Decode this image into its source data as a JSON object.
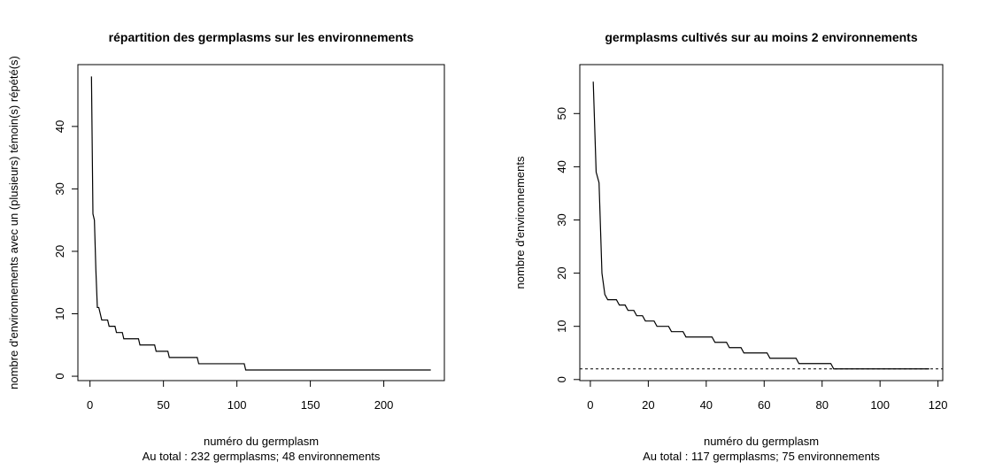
{
  "chart_data": [
    {
      "type": "line",
      "title": "répartition des germplasms sur les environnements",
      "xlabel": "numéro du germplasm",
      "subtitle": "Au total : 232 germplasms; 48 environnements",
      "ylabel": "nombre d'environnements avec un (plusieurs) témoin(s) répété(s)",
      "series": [
        {
          "color": "#000000",
          "x": [
            1,
            2,
            3,
            4,
            5,
            6,
            7,
            8,
            12,
            13,
            17,
            18,
            22,
            23,
            33,
            34,
            44,
            45,
            53,
            54,
            73,
            74,
            105,
            106,
            232
          ],
          "values": [
            48,
            26,
            25,
            17,
            11,
            11,
            10,
            9,
            9,
            8,
            8,
            7,
            7,
            6,
            6,
            5,
            5,
            4,
            4,
            3,
            3,
            2,
            2,
            1,
            1
          ]
        }
      ],
      "xlim": [
        -8.24,
        241.24
      ],
      "xticks": [
        0,
        50,
        100,
        150,
        200
      ],
      "ylim": [
        -0.7,
        49.9
      ],
      "yticks": [
        0,
        10,
        20,
        30,
        40
      ]
    },
    {
      "type": "line",
      "title": "germplasms cultivés sur au moins 2 environnements",
      "xlabel": "numéro du germplasm",
      "subtitle": "Au total : 117 germplasms; 75 environnements",
      "ylabel": "nombre d'environnements",
      "series": [
        {
          "color": "#000000",
          "x": [
            1,
            2,
            3,
            4,
            5,
            6,
            9,
            10,
            12,
            13,
            15,
            16,
            18,
            19,
            22,
            23,
            27,
            28,
            32,
            33,
            42,
            43,
            47,
            48,
            52,
            53,
            61,
            62,
            71,
            72,
            83,
            84,
            117
          ],
          "values": [
            56,
            39,
            37,
            20,
            16,
            15,
            15,
            14,
            14,
            13,
            13,
            12,
            12,
            11,
            11,
            10,
            10,
            9,
            9,
            8,
            8,
            7,
            7,
            6,
            6,
            5,
            5,
            4,
            4,
            3,
            3,
            2,
            2
          ]
        }
      ],
      "reference_line": 2,
      "xlim": [
        -3.64,
        121.64
      ],
      "xticks": [
        0,
        20,
        40,
        60,
        80,
        100,
        120
      ],
      "ylim": [
        -0.2,
        59.2
      ],
      "yticks": [
        0,
        10,
        20,
        30,
        40,
        50
      ]
    }
  ]
}
